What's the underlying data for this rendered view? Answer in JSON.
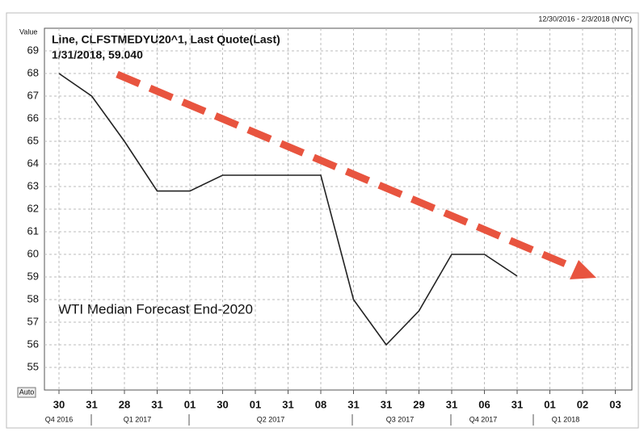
{
  "chart_data": {
    "type": "line",
    "header_range": "12/30/2016 - 2/3/2018 (NYC)",
    "y_axis_label": "Value",
    "legend_line1": "Line, CLFSTMEDYU20^1, Last Quote(Last)",
    "legend_line2": "1/31/2018, 59.040",
    "annotation": "WTI Median Forecast End-2020",
    "auto_button": "Auto",
    "categories": [
      "30",
      "31",
      "28",
      "31",
      "01",
      "30",
      "01",
      "31",
      "08",
      "31",
      "31",
      "29",
      "31",
      "06",
      "31",
      "01",
      "02",
      "03"
    ],
    "quarters": [
      "Q4 2016",
      "Q1 2017",
      "Q2 2017",
      "Q3 2017",
      "Q4 2017",
      "Q1 2018"
    ],
    "series": [
      {
        "name": "CLFSTMEDYU20^1",
        "color": "#222222",
        "values": [
          68,
          67,
          65,
          62.8,
          62.8,
          63.5,
          63.5,
          63.5,
          63.5,
          58,
          56,
          57.5,
          60,
          60,
          59.04,
          null,
          null,
          null
        ]
      }
    ],
    "ylim": [
      54,
      70
    ],
    "yticks": [
      55,
      56,
      57,
      58,
      59,
      60,
      61,
      62,
      63,
      64,
      65,
      66,
      67,
      68,
      69
    ],
    "grid": true
  }
}
